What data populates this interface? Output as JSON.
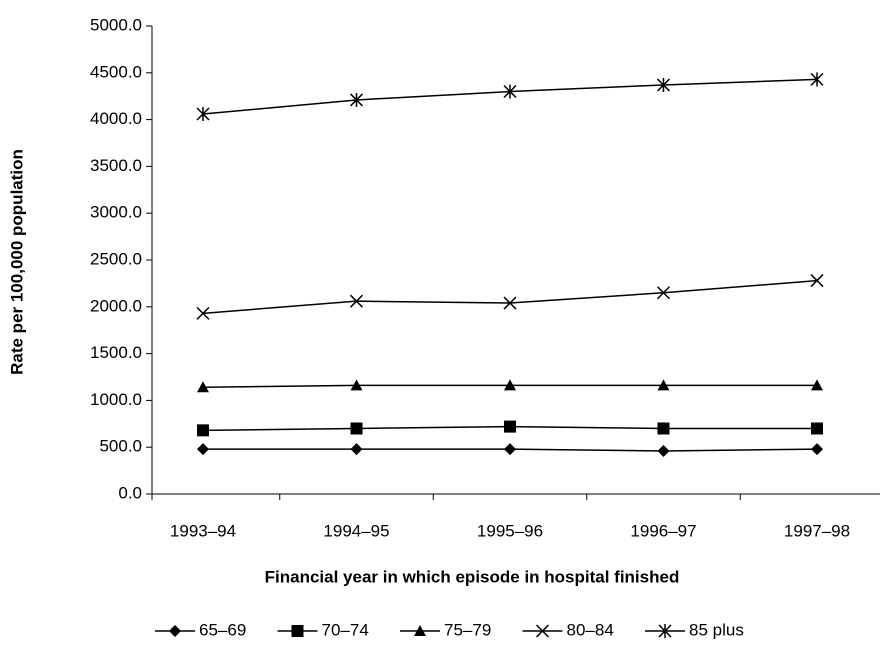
{
  "chart_data": {
    "type": "line",
    "x_label": "Financial year in which episode in hospital finished",
    "y_label": "Rate per 100,000 population",
    "categories": [
      "1993–94",
      "1994–95",
      "1995–96",
      "1996–97",
      "1997–98"
    ],
    "series": [
      {
        "name": "65–69",
        "color": "#000000",
        "marker": "diamond",
        "values": [
          480,
          480,
          480,
          460,
          480
        ]
      },
      {
        "name": "70–74",
        "color": "#000000",
        "marker": "square",
        "values": [
          680,
          700,
          720,
          700,
          700
        ]
      },
      {
        "name": "75–79",
        "color": "#000000",
        "marker": "triangle",
        "values": [
          1140,
          1160,
          1160,
          1160,
          1160
        ]
      },
      {
        "name": "80–84",
        "color": "#000000",
        "marker": "x",
        "values": [
          1930,
          2060,
          2040,
          2150,
          2280
        ]
      },
      {
        "name": "85 plus",
        "color": "#000000",
        "marker": "star",
        "values": [
          4060,
          4210,
          4300,
          4370,
          4430
        ]
      }
    ],
    "ylim": [
      0,
      5000
    ],
    "yticks": [
      {
        "value": 0,
        "label": "0.0"
      },
      {
        "value": 500,
        "label": "500.0"
      },
      {
        "value": 1000,
        "label": "1000.0"
      },
      {
        "value": 1500,
        "label": "1500.0"
      },
      {
        "value": 2000,
        "label": "2000.0"
      },
      {
        "value": 2500,
        "label": "2500.0"
      },
      {
        "value": 3000,
        "label": "3000.0"
      },
      {
        "value": 3500,
        "label": "3500.0"
      },
      {
        "value": 4000,
        "label": "4000.0"
      },
      {
        "value": 4500,
        "label": "4500.0"
      },
      {
        "value": 5000,
        "label": "5000.0"
      }
    ],
    "grid": false,
    "legend": "bottom"
  }
}
